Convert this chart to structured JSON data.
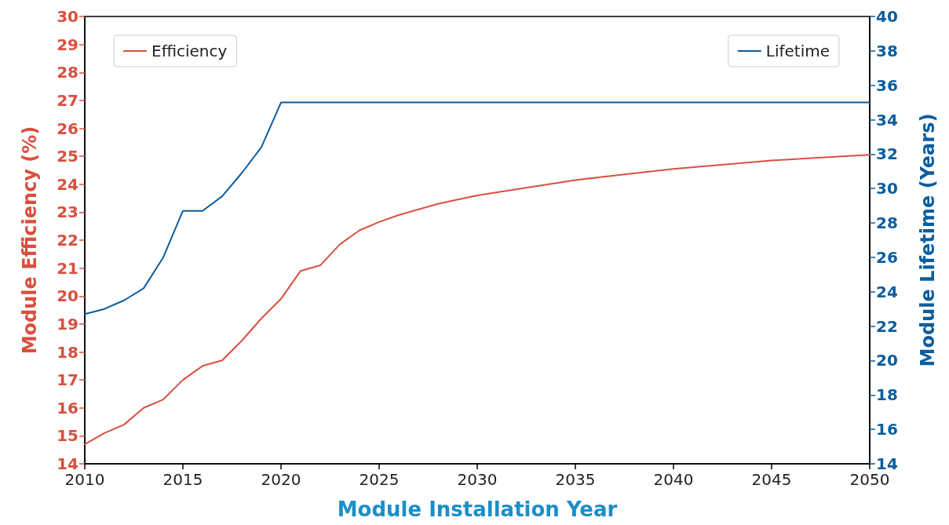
{
  "chart_data": {
    "type": "line",
    "xlabel": "Module Installation Year",
    "ylabel": "Module Efficiency (%)",
    "y2label": "Module Lifetime (Years)",
    "xlim": [
      2010,
      2050
    ],
    "xticks": [
      2010,
      2015,
      2020,
      2025,
      2030,
      2035,
      2040,
      2045,
      2050
    ],
    "ylim": [
      14,
      30
    ],
    "yticks": [
      14,
      15,
      16,
      17,
      18,
      19,
      20,
      21,
      22,
      23,
      24,
      25,
      26,
      27,
      28,
      29,
      30
    ],
    "y2lim": [
      14,
      40
    ],
    "y2ticks": [
      14,
      16,
      18,
      20,
      22,
      24,
      26,
      28,
      30,
      32,
      34,
      36,
      38,
      40
    ],
    "grid": false,
    "legend": "top",
    "marker": "none",
    "line_style": "solid",
    "series": [
      {
        "name": "Efficiency",
        "color": "#d9503f",
        "x": [
          2010,
          2011,
          2012,
          2013,
          2014,
          2015,
          2016,
          2017,
          2018,
          2019,
          2020,
          2021,
          2022,
          2023,
          2024,
          2025,
          2026,
          2028,
          2030,
          2035,
          2040,
          2045,
          2050
        ],
        "values": [
          14.7,
          15.1,
          15.4,
          16.0,
          16.3,
          17.0,
          17.5,
          17.7,
          18.4,
          19.2,
          19.9,
          20.9,
          21.1,
          21.85,
          22.35,
          22.65,
          22.9,
          23.3,
          23.6,
          24.15,
          24.55,
          24.85,
          25.05
        ]
      },
      {
        "name": "Lifetime",
        "color": "#0b5d9e",
        "axis": "y2",
        "x": [
          2010,
          2011,
          2012,
          2013,
          2014,
          2015,
          2016,
          2017,
          2018,
          2019,
          2020,
          2050
        ],
        "values": [
          22.7,
          23.0,
          23.5,
          24.2,
          26.0,
          28.7,
          28.7,
          29.55,
          30.9,
          32.4,
          35.0,
          35.0
        ]
      }
    ]
  }
}
